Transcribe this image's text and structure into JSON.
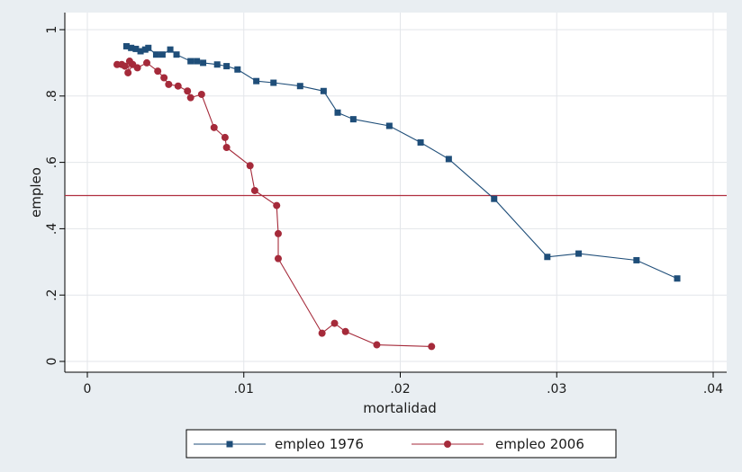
{
  "chart_data": {
    "type": "line",
    "xlabel": "mortalidad",
    "ylabel": "empleo",
    "xlim": [
      0,
      0.04
    ],
    "ylim": [
      0,
      1
    ],
    "x_ticks": [
      {
        "value": 0,
        "label": "0"
      },
      {
        "value": 0.01,
        "label": ".01"
      },
      {
        "value": 0.02,
        "label": ".02"
      },
      {
        "value": 0.03,
        "label": ".03"
      },
      {
        "value": 0.04,
        "label": ".04"
      }
    ],
    "y_ticks": [
      {
        "value": 0,
        "label": "0"
      },
      {
        "value": 0.2,
        "label": ".2"
      },
      {
        "value": 0.4,
        "label": ".4"
      },
      {
        "value": 0.6,
        "label": ".6"
      },
      {
        "value": 0.8,
        "label": ".8"
      },
      {
        "value": 1,
        "label": "1"
      }
    ],
    "grid": true,
    "legend_position": "bottom",
    "reference_line": {
      "y": 0.5,
      "color": "#b03040"
    },
    "series": [
      {
        "name": "empleo 1976",
        "color": "#1f4e79",
        "marker": "square",
        "x": [
          0.0025,
          0.0028,
          0.0031,
          0.0034,
          0.0037,
          0.0039,
          0.0044,
          0.0048,
          0.0053,
          0.0057,
          0.0066,
          0.007,
          0.0074,
          0.0083,
          0.0089,
          0.0096,
          0.0108,
          0.0119,
          0.0136,
          0.0151,
          0.016,
          0.017,
          0.0193,
          0.0213,
          0.0231,
          0.026,
          0.0294,
          0.0314,
          0.0351,
          0.0377
        ],
        "y": [
          0.95,
          0.945,
          0.942,
          0.935,
          0.94,
          0.945,
          0.925,
          0.925,
          0.94,
          0.925,
          0.905,
          0.905,
          0.9,
          0.895,
          0.89,
          0.88,
          0.845,
          0.84,
          0.83,
          0.815,
          0.75,
          0.73,
          0.71,
          0.66,
          0.61,
          0.49,
          0.315,
          0.325,
          0.305,
          0.25
        ]
      },
      {
        "name": "empleo 2006",
        "color": "#a52a3a",
        "marker": "circle",
        "x": [
          0.0019,
          0.0022,
          0.0024,
          0.0027,
          0.0026,
          0.0029,
          0.0032,
          0.0038,
          0.0045,
          0.0049,
          0.0052,
          0.0058,
          0.0064,
          0.0066,
          0.0073,
          0.0081,
          0.0088,
          0.0089,
          0.0104,
          0.0107,
          0.0121,
          0.0122,
          0.0122,
          0.015,
          0.0158,
          0.0165,
          0.0185,
          0.022
        ],
        "y": [
          0.895,
          0.895,
          0.89,
          0.905,
          0.87,
          0.895,
          0.885,
          0.9,
          0.875,
          0.855,
          0.835,
          0.83,
          0.815,
          0.795,
          0.805,
          0.705,
          0.675,
          0.645,
          0.59,
          0.515,
          0.47,
          0.385,
          0.31,
          0.085,
          0.115,
          0.09,
          0.05,
          0.045
        ]
      }
    ]
  }
}
